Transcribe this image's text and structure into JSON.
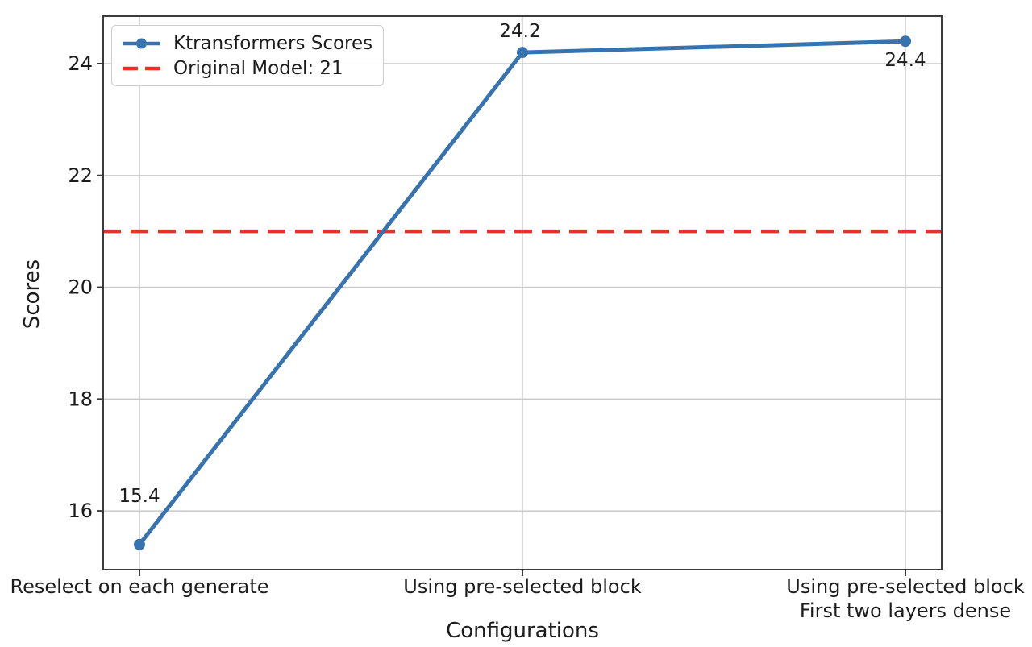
{
  "chart_data": {
    "type": "line",
    "title": "",
    "xlabel": "Configurations",
    "ylabel": "Scores",
    "categories": [
      "Reselect on each generate",
      "Using pre-selected block",
      "Using pre-selected block\nFirst two layers dense"
    ],
    "series": [
      {
        "name": "Ktransformers Scores",
        "values": [
          15.4,
          24.2,
          24.4
        ],
        "color": "#3773af",
        "marker": "circle",
        "line_style": "solid"
      }
    ],
    "data_labels": [
      "15.4",
      "24.2",
      "24.4"
    ],
    "reference_line": {
      "label": "Original Model: 21",
      "value": 21,
      "color": "#e5332b",
      "line_style": "dashed"
    },
    "yticks": [
      16,
      18,
      20,
      22,
      24
    ],
    "ylim": [
      14.95,
      24.85
    ],
    "grid": true,
    "legend_position": "upper-left",
    "legend": [
      "Ktransformers Scores",
      "Original Model: 21"
    ]
  }
}
